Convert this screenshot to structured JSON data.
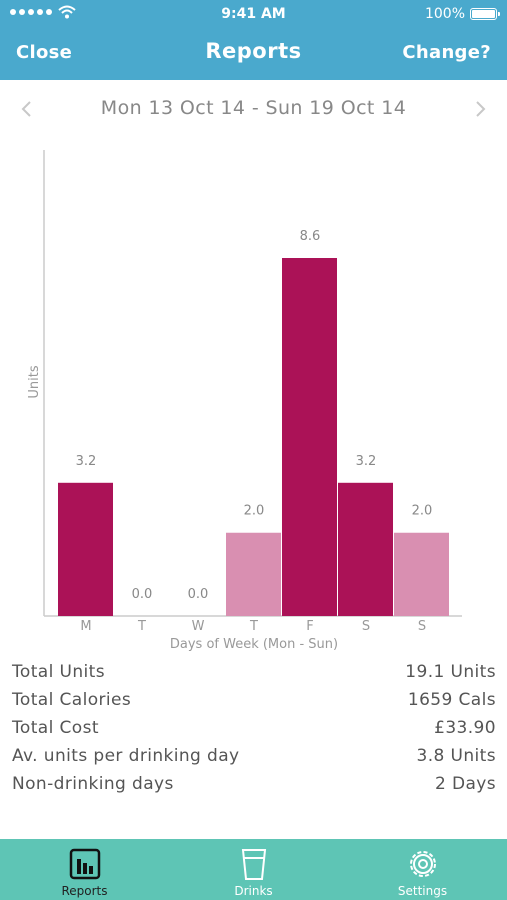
{
  "status_bar": {
    "time": "9:41 AM",
    "battery": "100%"
  },
  "nav": {
    "close_label": "Close",
    "title": "Reports",
    "change_label": "Change?"
  },
  "date_range": "Mon 13 Oct 14 - Sun 19 Oct 14",
  "colors": {
    "header": "#4aa9cd",
    "tab_bar": "#5ec5b5",
    "bar_dark": "#ab1257",
    "bar_light": "#d98fb1"
  },
  "chart_data": {
    "type": "bar",
    "categories": [
      "M",
      "T",
      "W",
      "T",
      "F",
      "S",
      "S"
    ],
    "values": [
      3.2,
      0.0,
      0.0,
      2.0,
      8.6,
      3.2,
      2.0
    ],
    "value_labels": [
      "3.2",
      "0.0",
      "0.0",
      "2.0",
      "8.6",
      "3.2",
      "2.0"
    ],
    "bar_shades": [
      "dark",
      "dark",
      "dark",
      "light",
      "dark",
      "dark",
      "light"
    ],
    "xlabel": "Days of Week (Mon - Sun)",
    "ylabel": "Units",
    "ylim": [
      0,
      10
    ],
    "grid": false
  },
  "stats": [
    {
      "label": "Total Units",
      "value": "19.1 Units"
    },
    {
      "label": "Total Calories",
      "value": "1659 Cals"
    },
    {
      "label": "Total Cost",
      "value": "£33.90"
    },
    {
      "label": "Av. units per drinking day",
      "value": "3.8 Units"
    },
    {
      "label": "Non-drinking days",
      "value": "2 Days"
    }
  ],
  "tabs": [
    {
      "label": "Reports",
      "icon": "bar-chart-icon",
      "active": true
    },
    {
      "label": "Drinks",
      "icon": "glass-icon",
      "active": false
    },
    {
      "label": "Settings",
      "icon": "gear-icon",
      "active": false
    }
  ]
}
